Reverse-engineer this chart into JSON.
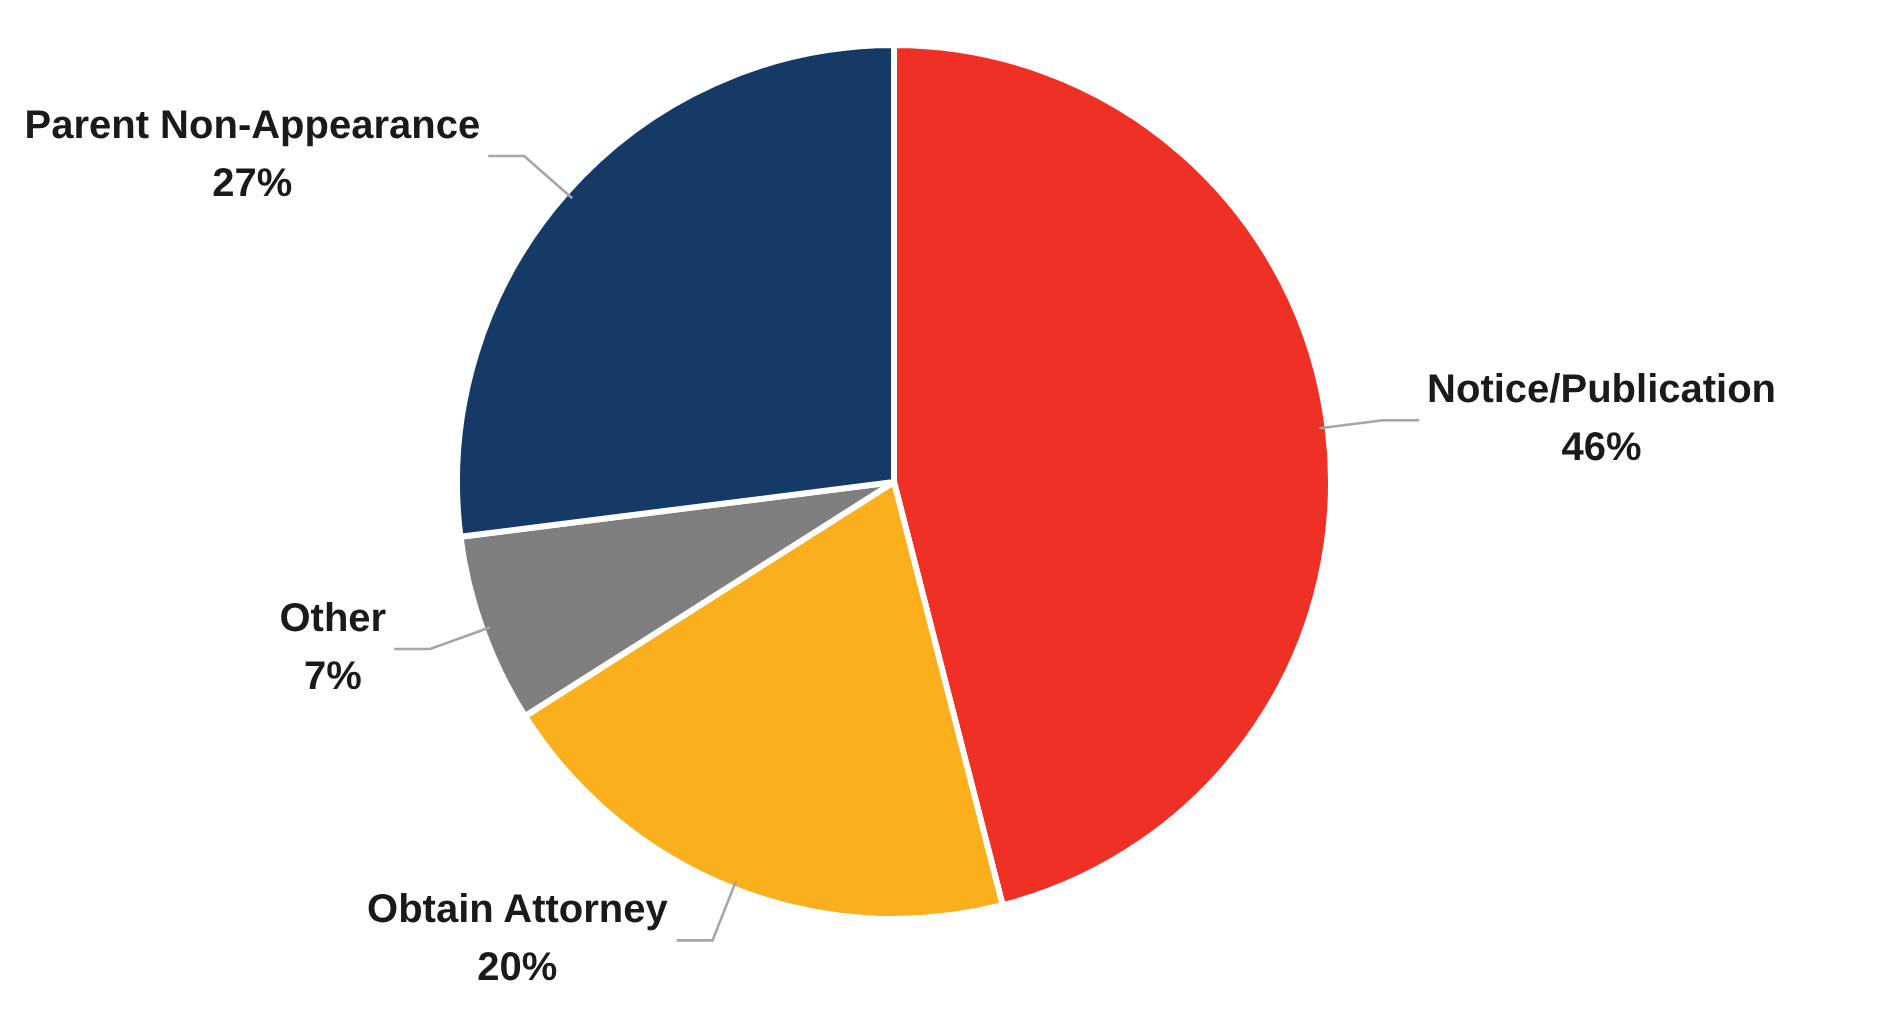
{
  "chart_data": {
    "type": "pie",
    "categories": [
      "Notice/Publication",
      "Obtain Attorney",
      "Other",
      "Parent Non-Appearance"
    ],
    "values": [
      46,
      20,
      7,
      27
    ],
    "colors": [
      "#ee3124",
      "#f9b01c",
      "#7f7f7f",
      "#163a66"
    ],
    "value_labels": [
      "46%",
      "20%",
      "7%",
      "27%"
    ],
    "legend": false
  }
}
